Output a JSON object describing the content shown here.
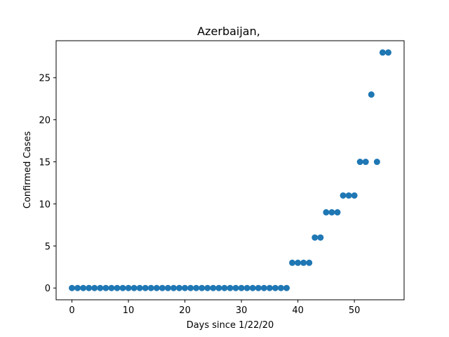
{
  "chart_data": {
    "type": "scatter",
    "title": "Azerbaijan,",
    "xlabel": "Days since 1/22/20",
    "ylabel": "Confirmed Cases",
    "xlim": [
      -2.8,
      58.8
    ],
    "ylim": [
      -1.4,
      29.4
    ],
    "xticks": [
      0,
      10,
      20,
      30,
      40,
      50
    ],
    "yticks": [
      0,
      5,
      10,
      15,
      20,
      25
    ],
    "grid": false,
    "marker_color": "#1f77b4",
    "series": [
      {
        "x": [
          0,
          1,
          2,
          3,
          4,
          5,
          6,
          7,
          8,
          9,
          10,
          11,
          12,
          13,
          14,
          15,
          16,
          17,
          18,
          19,
          20,
          21,
          22,
          23,
          24,
          25,
          26,
          27,
          28,
          29,
          30,
          31,
          32,
          33,
          34,
          35,
          36,
          37,
          38,
          39,
          40,
          41,
          42,
          43,
          44,
          45,
          46,
          47,
          48,
          49,
          50,
          51,
          52,
          53,
          54,
          55,
          56
        ],
        "y": [
          0,
          0,
          0,
          0,
          0,
          0,
          0,
          0,
          0,
          0,
          0,
          0,
          0,
          0,
          0,
          0,
          0,
          0,
          0,
          0,
          0,
          0,
          0,
          0,
          0,
          0,
          0,
          0,
          0,
          0,
          0,
          0,
          0,
          0,
          0,
          0,
          0,
          0,
          0,
          3,
          3,
          3,
          3,
          6,
          6,
          9,
          9,
          9,
          11,
          11,
          11,
          15,
          15,
          23,
          15,
          28,
          28
        ]
      }
    ]
  }
}
